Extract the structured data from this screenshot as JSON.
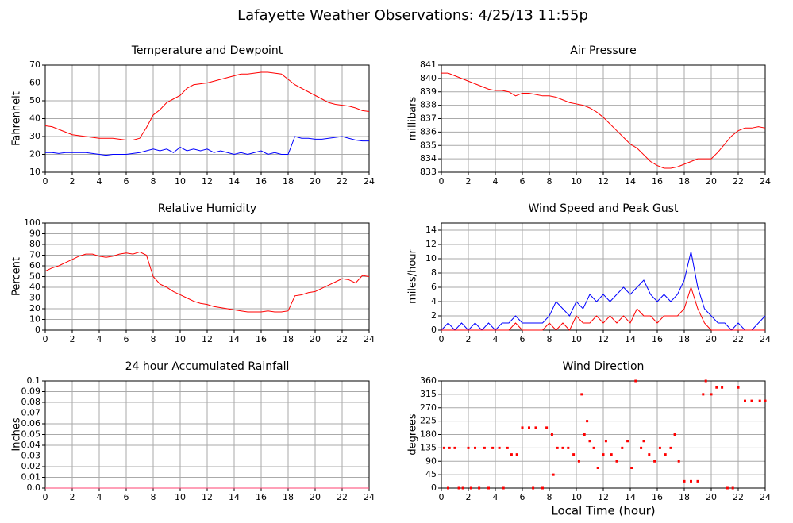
{
  "title": "Lafayette Weather Observations: 4/25/13 11:55p",
  "chart_data": [
    {
      "type": "line",
      "title": "Temperature and Dewpoint",
      "ylabel": "Fahrenheit",
      "x": [
        0,
        0.5,
        1,
        1.5,
        2,
        2.5,
        3,
        3.5,
        4,
        4.5,
        5,
        5.5,
        6,
        6.5,
        7,
        7.5,
        8,
        8.5,
        9,
        9.5,
        10,
        10.5,
        11,
        11.5,
        12,
        12.5,
        13,
        13.5,
        14,
        14.5,
        15,
        15.5,
        16,
        16.5,
        17,
        17.5,
        18,
        18.5,
        19,
        19.5,
        20,
        20.5,
        21,
        21.5,
        22,
        22.5,
        23,
        23.5,
        24
      ],
      "series": [
        {
          "color": "#ff0000",
          "values": [
            36,
            35.5,
            34,
            32.5,
            31,
            30.5,
            30,
            29.5,
            29,
            29,
            29,
            28.5,
            28,
            28,
            29,
            35,
            42,
            45,
            49,
            51,
            53,
            57,
            59,
            59.5,
            60,
            61,
            62,
            63,
            64,
            65,
            65,
            65.5,
            66,
            66,
            65.5,
            65,
            62,
            59,
            57,
            55,
            53,
            51,
            49,
            48,
            47.5,
            47,
            46,
            44.5,
            44
          ]
        },
        {
          "color": "#0000ff",
          "values": [
            21,
            21,
            20.5,
            21,
            21,
            21,
            21,
            20.5,
            20,
            19.5,
            20,
            20,
            20,
            20.5,
            21,
            22,
            23,
            22,
            23,
            21,
            24,
            22,
            23,
            22,
            23,
            21,
            22,
            21,
            20,
            21,
            20,
            21,
            22,
            20,
            21,
            20,
            20,
            30,
            29,
            29,
            28.5,
            28.5,
            29,
            29.5,
            30,
            29,
            28,
            27.5,
            27.5
          ]
        }
      ],
      "xlim": [
        0,
        24
      ],
      "xticks": [
        0,
        2,
        4,
        6,
        8,
        10,
        12,
        14,
        16,
        18,
        20,
        22,
        24
      ],
      "ylim": [
        10,
        70
      ],
      "yticks": [
        10,
        20,
        30,
        40,
        50,
        60,
        70
      ],
      "grid": true
    },
    {
      "type": "line",
      "title": "Air Pressure",
      "ylabel": "millibars",
      "x": [
        0,
        0.5,
        1,
        1.5,
        2,
        2.5,
        3,
        3.5,
        4,
        4.5,
        5,
        5.5,
        6,
        6.5,
        7,
        7.5,
        8,
        8.5,
        9,
        9.5,
        10,
        10.5,
        11,
        11.5,
        12,
        12.5,
        13,
        13.5,
        14,
        14.5,
        15,
        15.5,
        16,
        16.5,
        17,
        17.5,
        18,
        18.5,
        19,
        19.5,
        20,
        20.5,
        21,
        21.5,
        22,
        22.5,
        23,
        23.5,
        24
      ],
      "series": [
        {
          "color": "#ff0000",
          "values": [
            840.4,
            840.4,
            840.2,
            840,
            839.8,
            839.6,
            839.4,
            839.2,
            839.1,
            839.1,
            839,
            838.7,
            838.9,
            838.9,
            838.8,
            838.7,
            838.7,
            838.6,
            838.4,
            838.2,
            838.1,
            838,
            837.8,
            837.5,
            837.1,
            836.6,
            836.1,
            835.6,
            835.1,
            834.8,
            834.3,
            833.8,
            833.5,
            833.3,
            833.3,
            833.4,
            833.6,
            833.8,
            834,
            834,
            834,
            834.5,
            835.1,
            835.7,
            836.1,
            836.3,
            836.3,
            836.4,
            836.3
          ]
        }
      ],
      "xlim": [
        0,
        24
      ],
      "xticks": [
        0,
        2,
        4,
        6,
        8,
        10,
        12,
        14,
        16,
        18,
        20,
        22,
        24
      ],
      "ylim": [
        833,
        841
      ],
      "yticks": [
        833,
        834,
        835,
        836,
        837,
        838,
        839,
        840,
        841
      ],
      "grid": true
    },
    {
      "type": "line",
      "title": "Relative Humidity",
      "ylabel": "Percent",
      "x": [
        0,
        0.5,
        1,
        1.5,
        2,
        2.5,
        3,
        3.5,
        4,
        4.5,
        5,
        5.5,
        6,
        6.5,
        7,
        7.5,
        8,
        8.5,
        9,
        9.5,
        10,
        10.5,
        11,
        11.5,
        12,
        12.5,
        13,
        13.5,
        14,
        14.5,
        15,
        15.5,
        16,
        16.5,
        17,
        17.5,
        18,
        18.5,
        19,
        19.5,
        20,
        20.5,
        21,
        21.5,
        22,
        22.5,
        23,
        23.5,
        24
      ],
      "series": [
        {
          "color": "#ff0000",
          "values": [
            55,
            58,
            60,
            63,
            66,
            69,
            71,
            71,
            69,
            68,
            69,
            71,
            72,
            71,
            73,
            70,
            50,
            43,
            40,
            36,
            33,
            30,
            27,
            25,
            24,
            22,
            21,
            20,
            19,
            18,
            17,
            17,
            17,
            18,
            17,
            17,
            18,
            32,
            33,
            35,
            36,
            39,
            42,
            45,
            48,
            47,
            44,
            51,
            50
          ]
        }
      ],
      "xlim": [
        0,
        24
      ],
      "xticks": [
        0,
        2,
        4,
        6,
        8,
        10,
        12,
        14,
        16,
        18,
        20,
        22,
        24
      ],
      "ylim": [
        0,
        100
      ],
      "yticks": [
        0,
        10,
        20,
        30,
        40,
        50,
        60,
        70,
        80,
        90,
        100
      ],
      "grid": true
    },
    {
      "type": "line",
      "title": "Wind Speed and Peak Gust",
      "ylabel": "miles/hour",
      "x": [
        0,
        0.5,
        1,
        1.5,
        2,
        2.5,
        3,
        3.5,
        4,
        4.5,
        5,
        5.5,
        6,
        6.5,
        7,
        7.5,
        8,
        8.5,
        9,
        9.5,
        10,
        10.5,
        11,
        11.5,
        12,
        12.5,
        13,
        13.5,
        14,
        14.5,
        15,
        15.5,
        16,
        16.5,
        17,
        17.5,
        18,
        18.5,
        19,
        19.5,
        20,
        20.5,
        21,
        21.5,
        22,
        22.5,
        23,
        23.5,
        24
      ],
      "series": [
        {
          "color": "#0000ff",
          "values": [
            0,
            1,
            0,
            1,
            0,
            1,
            0,
            1,
            0,
            1,
            1,
            2,
            1,
            1,
            1,
            1,
            2,
            4,
            3,
            2,
            4,
            3,
            5,
            4,
            5,
            4,
            5,
            6,
            5,
            6,
            7,
            5,
            4,
            5,
            4,
            5,
            7,
            11,
            6,
            3,
            2,
            1,
            1,
            0,
            1,
            0,
            0,
            1,
            2
          ]
        },
        {
          "color": "#ff0000",
          "values": [
            0,
            0,
            0,
            0,
            0,
            0,
            0,
            0,
            0,
            0,
            0,
            1,
            0,
            0,
            0,
            0,
            1,
            0,
            1,
            0,
            2,
            1,
            1,
            2,
            1,
            2,
            1,
            2,
            1,
            3,
            2,
            2,
            1,
            2,
            2,
            2,
            3,
            6,
            3,
            1,
            0,
            0,
            0,
            0,
            0,
            0,
            0,
            0,
            0
          ]
        }
      ],
      "xlim": [
        0,
        24
      ],
      "xticks": [
        0,
        2,
        4,
        6,
        8,
        10,
        12,
        14,
        16,
        18,
        20,
        22,
        24
      ],
      "ylim": [
        0,
        15
      ],
      "yticks": [
        0,
        2,
        4,
        6,
        8,
        10,
        12,
        14
      ],
      "grid": true
    },
    {
      "type": "line",
      "title": "24 hour Accumulated Rainfall",
      "ylabel": "Inches",
      "x": [
        0,
        1,
        2,
        3,
        4,
        5,
        6,
        7,
        8,
        9,
        10,
        11,
        12,
        13,
        14,
        15,
        16,
        17,
        18,
        19,
        20,
        21,
        22,
        23,
        24
      ],
      "series": [
        {
          "color": "#ff4070",
          "values": [
            0,
            0,
            0,
            0,
            0,
            0,
            0,
            0,
            0,
            0,
            0,
            0,
            0,
            0,
            0,
            0,
            0,
            0,
            0,
            0,
            0,
            0,
            0,
            0,
            0
          ]
        }
      ],
      "xlim": [
        0,
        24
      ],
      "xticks": [
        0,
        2,
        4,
        6,
        8,
        10,
        12,
        14,
        16,
        18,
        20,
        22,
        24
      ],
      "ylim": [
        0,
        0.1
      ],
      "yticks": [
        {
          "value": 0,
          "label": "0.0"
        },
        0.01,
        0.02,
        0.03,
        0.04,
        0.05,
        0.06,
        0.07,
        0.08,
        0.09,
        0.1
      ],
      "grid": true
    },
    {
      "type": "scatter",
      "title": "Wind Direction",
      "ylabel": "degrees",
      "xlabel": "Local Time (hour)",
      "x": [
        0.2,
        0.6,
        1,
        0.5,
        1.3,
        1.6,
        2,
        2.5,
        2.2,
        2.8,
        3.2,
        3.5,
        3.8,
        4.3,
        4.6,
        4.9,
        5.2,
        5.6,
        6,
        6.5,
        7,
        6.8,
        7.5,
        7.8,
        8.2,
        8.3,
        8.6,
        9,
        9.4,
        9.8,
        10.2,
        10.4,
        10.6,
        10.8,
        11,
        11.3,
        11.6,
        12,
        12.2,
        12.6,
        13,
        13.4,
        13.8,
        14.1,
        14.4,
        14.8,
        15,
        15.4,
        15.8,
        16.2,
        16.6,
        17,
        17.3,
        17.6,
        18,
        18.5,
        19,
        19.4,
        19.6,
        20,
        20.4,
        20.8,
        21.2,
        21.6,
        22,
        22.5,
        23,
        23.6,
        24
      ],
      "series": [
        {
          "color": "#ff0000",
          "values": [
            135,
            135,
            135,
            0,
            0,
            0,
            135,
            135,
            0,
            0,
            135,
            0,
            135,
            135,
            0,
            135,
            113,
            113,
            203,
            203,
            203,
            0,
            0,
            203,
            180,
            45,
            135,
            135,
            135,
            113,
            90,
            315,
            180,
            225,
            158,
            135,
            68,
            113,
            158,
            113,
            90,
            135,
            158,
            68,
            360,
            135,
            158,
            113,
            90,
            135,
            113,
            135,
            180,
            90,
            23,
            23,
            23,
            315,
            360,
            315,
            338,
            338,
            0,
            0,
            338,
            293,
            293,
            293,
            293
          ]
        }
      ],
      "xlim": [
        0,
        24
      ],
      "xticks": [
        0,
        2,
        4,
        6,
        8,
        10,
        12,
        14,
        16,
        18,
        20,
        22,
        24
      ],
      "ylim": [
        0,
        360
      ],
      "yticks": [
        0,
        45,
        90,
        135,
        180,
        225,
        270,
        315,
        360
      ],
      "grid": true
    }
  ]
}
